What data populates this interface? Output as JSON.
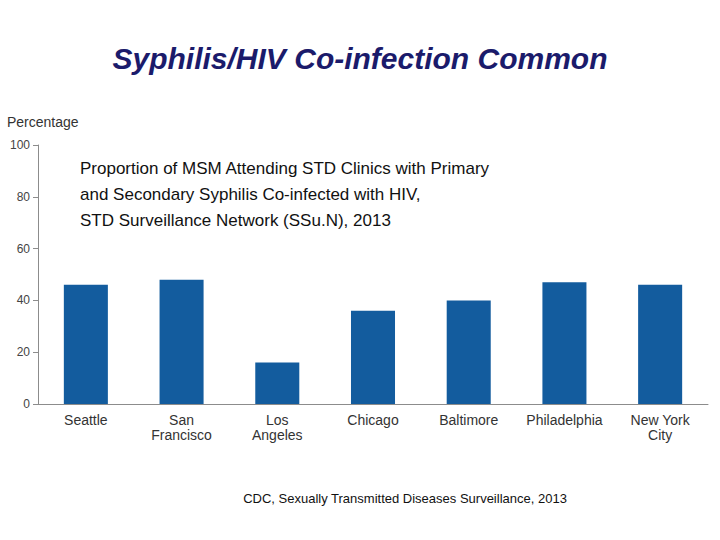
{
  "chart_data": {
    "type": "bar",
    "title": "Syphilis/HIV Co-infection Common",
    "subtitle": "Proportion of MSM Attending STD Clinics with Primary\nand Secondary Syphilis Co-infected with HIV,\nSTD Surveillance Network (SSu.N), 2013",
    "y_label": "Percentage",
    "annotations": [
      "CDC, Sexually Transmitted Diseases Surveillance, 2013"
    ],
    "categories": [
      "Seattle",
      "San\nFrancisco",
      "Los\nAngeles",
      "Chicago",
      "Baltimore",
      "Philadelphia",
      "New York\nCity"
    ],
    "values": [
      46,
      48,
      16,
      36,
      40,
      47,
      46
    ],
    "color": "#135c9e",
    "ylim": [
      0,
      100
    ],
    "yticks": [
      0,
      20,
      40,
      60,
      80,
      100
    ],
    "grid": false
  }
}
